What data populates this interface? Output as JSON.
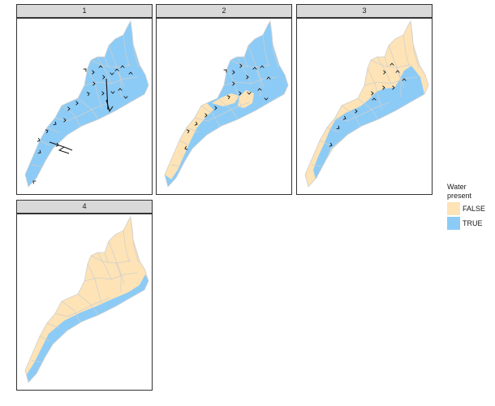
{
  "colors": {
    "dry": "#fde3b6",
    "wet": "#8ccbf6",
    "boundary": "#cfcfcf",
    "strip_bg": "#d9d9d9",
    "frame": "#333333"
  },
  "legend": {
    "title_line1": "Water",
    "title_line2": "present",
    "items": [
      {
        "label": "FALSE",
        "color": "#fde3b6"
      },
      {
        "label": "TRUE",
        "color": "#8ccbf6"
      }
    ]
  },
  "panels": [
    {
      "label": "1",
      "water": "all"
    },
    {
      "label": "2",
      "water": "most"
    },
    {
      "label": "3",
      "water": "channel"
    },
    {
      "label": "4",
      "water": "edge"
    }
  ]
}
